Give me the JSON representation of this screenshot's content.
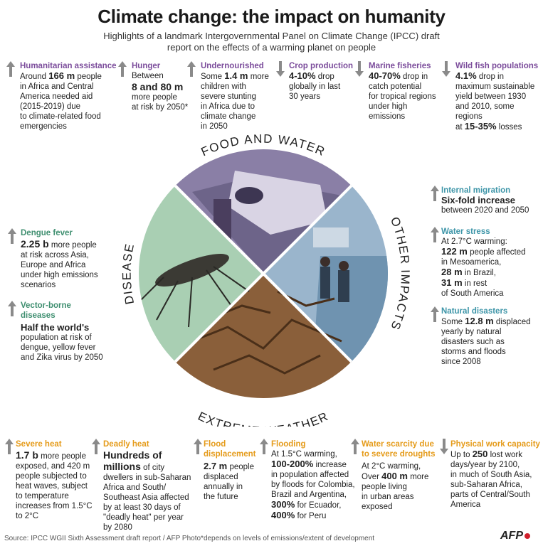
{
  "header": {
    "title": "Climate change: the impact on humanity",
    "subtitle": "Highlights of a landmark Intergovernmental Panel on Climate Change (IPCC) draft report on the effects of a warming planet on people"
  },
  "colors": {
    "purple": "#7b4c9b",
    "teal": "#3d95a8",
    "green": "#3f8f70",
    "orange": "#e59b1a",
    "arrow": "#8a8a8a",
    "disease_bg": "#a9cfb3",
    "water_bg": "#9db7cf"
  },
  "wheel": {
    "food": "FOOD AND WATER",
    "other": "OTHER IMPACTS",
    "weather": "EXTREME WEATHER",
    "disease": "DISEASE"
  },
  "top": {
    "humanitarian": {
      "head": "Humanitarian assistance",
      "l1a": "Around ",
      "l1b": "166 m",
      "l1c": " people",
      "rest": [
        "in Africa and Central",
        "America needed aid",
        "(2015-2019) due",
        "to climate-related food",
        "emergencies"
      ]
    },
    "hunger": {
      "head": "Hunger",
      "l1": "Between",
      "big": [
        "8 and 80 m"
      ],
      "rest": [
        "more people",
        "at risk by 2050*"
      ]
    },
    "undernourished": {
      "head": "Undernourished",
      "l1a": "Some ",
      "l1b": "1.4 m",
      "l1c": " more",
      "rest": [
        "children with",
        "severe stunting",
        "in Africa due to",
        "climate change",
        "in 2050"
      ]
    },
    "crop": {
      "head": "Crop production",
      "l1a": "4-10%",
      "l1b": " drop",
      "rest": [
        "globally in last",
        "30 years"
      ]
    },
    "marine": {
      "head": "Marine fisheries",
      "l1a": "40-70%",
      "l1b": " drop in",
      "rest": [
        "catch potential",
        "for tropical regions",
        "under high",
        "emissions"
      ]
    },
    "wild": {
      "head": "Wild fish populations",
      "l1a": "4.1%",
      "l1b": " drop in",
      "rest": [
        "maximum sustainable",
        "yield between 1930",
        "and 2010, some regions"
      ],
      "l5a": "at ",
      "l5b": "15-35%",
      "l5c": " losses"
    }
  },
  "right": {
    "migration": {
      "head": "Internal migration",
      "big": "Six-fold increase",
      "rest": "between 2020 and 2050"
    },
    "stress": {
      "head": "Water stress",
      "l1": "At 2.7°C warming:",
      "b1": "122 m",
      "t1": " people affected",
      "t2": "in Mesoamerica,",
      "b3": "28 m",
      "t3": " in Brazil,",
      "b4": "31 m",
      "t4": " in rest",
      "t5": "of South America"
    },
    "disasters": {
      "head": "Natural disasters",
      "l1a": "Some ",
      "l1b": "12.8 m",
      "l1c": " displaced",
      "rest": [
        "yearly by natural",
        "disasters such as",
        "storms and floods",
        "since 2008"
      ]
    }
  },
  "left": {
    "dengue": {
      "head": "Dengue fever",
      "big": "2.25 b",
      "l1": " more people",
      "rest": [
        "at risk across Asia,",
        "Europe and Africa",
        "under high emissions",
        "scenarios"
      ]
    },
    "vector": {
      "head": [
        "Vector-borne",
        "diseases"
      ],
      "big": "Half the world's",
      "rest": [
        "population at risk of",
        "dengue, yellow fever",
        "and Zika virus by 2050"
      ]
    }
  },
  "bottom": {
    "heat": {
      "head": "Severe heat",
      "big": "1.7 b",
      "l1": " more people",
      "rest": [
        "exposed, and 420 m",
        "people subjected to",
        "heat waves, subject",
        "to temperature",
        "increases from 1.5°C",
        "to 2°C"
      ]
    },
    "deadly": {
      "head": "Deadly heat",
      "big": [
        "Hundreds of",
        "millions"
      ],
      "l2": " of city",
      "rest": [
        "dwellers in sub-Saharan",
        "Africa and South/",
        "Southeast Asia affected",
        "by at least 30 days of",
        "\"deadly heat\" per year",
        "by 2080"
      ]
    },
    "flood_disp": {
      "head": [
        "Flood",
        "displacement"
      ],
      "big": "2.7 m",
      "l1": " people",
      "rest": [
        "displaced",
        "annually in",
        "the future"
      ]
    },
    "flooding": {
      "head": "Flooding",
      "l1": "At 1.5°C warming,",
      "b2": "100-200%",
      "t2": " increase",
      "rest": [
        "in population affected",
        "by floods for Colombia,",
        "Brazil and Argentina,"
      ],
      "b6": "300%",
      "t6": " for Ecuador,",
      "b7": "400%",
      "t7": " for Peru"
    },
    "scarcity": {
      "head": [
        "Water scarcity due",
        "to severe droughts"
      ],
      "l1": "At 2°C warming,",
      "l2a": "Over ",
      "l2b": "400 m",
      "l2c": " more",
      "rest": [
        "people living",
        "in urban areas",
        "exposed"
      ]
    },
    "work": {
      "head": "Physical work capacity",
      "l1a": "Up to ",
      "l1b": "250",
      "l1c": " lost work",
      "rest": [
        "days/year by 2100,",
        "in much of South Asia,",
        "sub-Saharan Africa,",
        "parts of Central/South",
        "America"
      ]
    }
  },
  "footer": {
    "source": "Source: IPCC WGII Sixth Assessment draft report  / AFP Photo",
    "note": "*depends on levels of emissions/extent of development",
    "brand": "AFP"
  }
}
